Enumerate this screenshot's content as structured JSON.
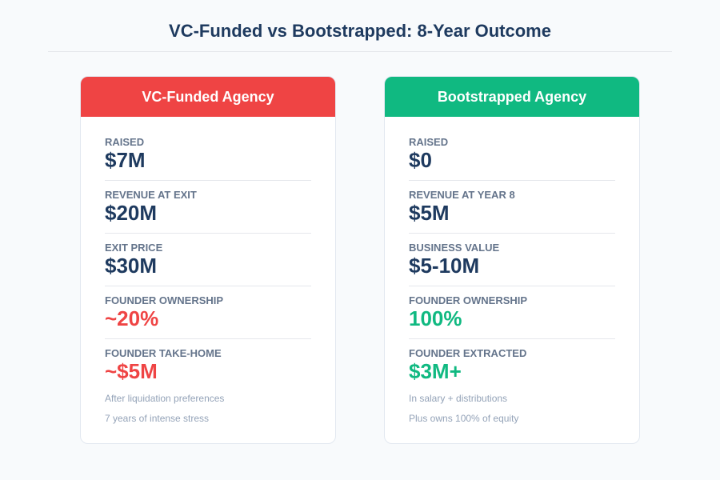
{
  "header": {
    "title": "VC-Funded vs Bootstrapped: 8-Year Outcome"
  },
  "cards": [
    {
      "title": "VC-Funded Agency",
      "rows": [
        {
          "label": "RAISED",
          "value": "$7M"
        },
        {
          "label": "REVENUE AT EXIT",
          "value": "$20M"
        },
        {
          "label": "EXIT PRICE",
          "value": "$30M"
        },
        {
          "label": "FOUNDER OWNERSHIP",
          "value": "~20%"
        },
        {
          "label": "FOUNDER TAKE-HOME",
          "value": "~$5M"
        }
      ],
      "notes": [
        "After liquidation preferences",
        "7 years of intense stress"
      ]
    },
    {
      "title": "Bootstrapped Agency",
      "rows": [
        {
          "label": "RAISED",
          "value": "$0"
        },
        {
          "label": "REVENUE AT YEAR 8",
          "value": "$5M"
        },
        {
          "label": "BUSINESS VALUE",
          "value": "$5-10M"
        },
        {
          "label": "FOUNDER OWNERSHIP",
          "value": "100%"
        },
        {
          "label": "FOUNDER EXTRACTED",
          "value": "$3M+"
        }
      ],
      "notes": [
        "In salary + distributions",
        "Plus owns 100% of equity"
      ]
    }
  ]
}
